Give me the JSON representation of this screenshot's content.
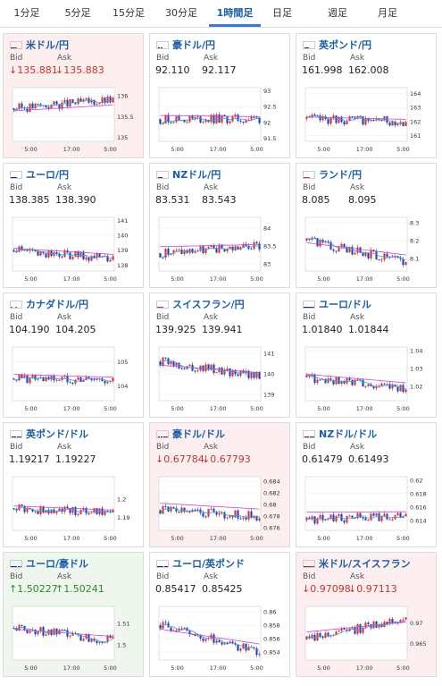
{
  "tabs": [
    "1分足",
    "5分足",
    "15分足",
    "30分足",
    "1時間足",
    "日足",
    "週足",
    "月足"
  ],
  "active_tab": 4,
  "bid_label": "Bid",
  "ask_label": "Ask",
  "colors": {
    "up_candle": "#e03030",
    "down_candle": "#2040b0",
    "ma_short": "#39a0d8",
    "ma_long": "#d040d0"
  },
  "cards": [
    {
      "pair": "米ドル/円",
      "flag": "us-jp",
      "bid": "↓135.881",
      "ask": "↓135.883",
      "trend": "down",
      "yticks": [
        "136",
        "135.5",
        "135"
      ],
      "xticks": [
        "5:00",
        "17:00",
        "5:00"
      ],
      "ylim": [
        134.9,
        136.2
      ],
      "start": 135.7,
      "end": 135.9,
      "ma": 135.6
    },
    {
      "pair": "豪ドル/円",
      "flag": "au-jp",
      "bid": "92.110",
      "ask": "92.117",
      "trend": "flat",
      "yticks": [
        "93",
        "92.5",
        "92",
        "91.5"
      ],
      "xticks": [
        "5:00",
        "17:00",
        "5:00"
      ],
      "ylim": [
        91.4,
        93.1
      ],
      "start": 92.1,
      "end": 92.1,
      "ma": 92.3
    },
    {
      "pair": "英ポンド/円",
      "flag": "gb-jp",
      "bid": "161.998",
      "ask": "162.008",
      "trend": "flat",
      "yticks": [
        "164",
        "163",
        "162",
        "161"
      ],
      "xticks": [
        "5:00",
        "17:00",
        "5:00"
      ],
      "ylim": [
        160.6,
        164.4
      ],
      "start": 162.2,
      "end": 162.0,
      "ma": 162.4
    },
    {
      "pair": "ユーロ/円",
      "flag": "eu-jp",
      "bid": "138.385",
      "ask": "138.390",
      "trend": "flat",
      "yticks": [
        "141",
        "140",
        "139",
        "138"
      ],
      "xticks": [
        "5:00",
        "17:00",
        "5:00"
      ],
      "ylim": [
        137.6,
        141.2
      ],
      "start": 139.0,
      "end": 138.4,
      "ma": 139.2
    },
    {
      "pair": "NZドル/円",
      "flag": "nz-jp",
      "bid": "83.531",
      "ask": "83.543",
      "trend": "flat",
      "yticks": [
        "84",
        "83.5",
        "83"
      ],
      "xticks": [
        "5:00",
        "17:00",
        "5:00"
      ],
      "ylim": [
        82.8,
        84.3
      ],
      "start": 83.3,
      "end": 83.5,
      "ma": 83.6
    },
    {
      "pair": "ランド/円",
      "flag": "za-jp",
      "bid": "8.085",
      "ask": "8.095",
      "trend": "flat",
      "yticks": [
        "8.3",
        "8.2",
        "8.1"
      ],
      "xticks": [
        "5:00",
        "17:00",
        "5:00"
      ],
      "ylim": [
        8.03,
        8.33
      ],
      "start": 8.2,
      "end": 8.08,
      "ma": 8.18
    },
    {
      "pair": "カナダドル/円",
      "flag": "ca-jp",
      "bid": "104.190",
      "ask": "104.205",
      "trend": "flat",
      "yticks": [
        "105",
        "104"
      ],
      "xticks": [
        "5:00",
        "17:00",
        "5:00"
      ],
      "ylim": [
        103.4,
        105.6
      ],
      "start": 104.3,
      "end": 104.2,
      "ma": 104.6
    },
    {
      "pair": "スイスフラン/円",
      "flag": "ch-jp",
      "bid": "139.925",
      "ask": "139.941",
      "trend": "flat",
      "yticks": [
        "141",
        "140",
        "139"
      ],
      "xticks": [
        "5:00",
        "17:00",
        "5:00"
      ],
      "ylim": [
        138.7,
        141.3
      ],
      "start": 140.6,
      "end": 139.9,
      "ma": 140.3
    },
    {
      "pair": "ユーロ/ドル",
      "flag": "eu-us",
      "bid": "1.01840",
      "ask": "1.01844",
      "trend": "flat",
      "yticks": [
        "1.04",
        "1.03",
        "1.02"
      ],
      "xticks": [
        "5:00",
        "17:00",
        "5:00"
      ],
      "ylim": [
        1.012,
        1.042
      ],
      "start": 1.025,
      "end": 1.018,
      "ma": 1.028
    },
    {
      "pair": "英ポンド/ドル",
      "flag": "gb-us",
      "bid": "1.19217",
      "ask": "1.19227",
      "trend": "flat",
      "yticks": [
        "1.2",
        "1.19"
      ],
      "xticks": [
        "5:00",
        "17:00",
        "5:00"
      ],
      "ylim": [
        1.183,
        1.212
      ],
      "start": 1.195,
      "end": 1.192,
      "ma": 1.197
    },
    {
      "pair": "豪ドル/ドル",
      "flag": "au-us",
      "bid": "↓0.67784",
      "ask": "↓0.67793",
      "trend": "down",
      "yticks": [
        "0.684",
        "0.682",
        "0.68",
        "0.678",
        "0.676"
      ],
      "xticks": [
        "5:00",
        "17:00",
        "5:00"
      ],
      "ylim": [
        0.6755,
        0.6848
      ],
      "start": 0.679,
      "end": 0.678,
      "ma": 0.681
    },
    {
      "pair": "NZドル/ドル",
      "flag": "nz-us",
      "bid": "0.61479",
      "ask": "0.61493",
      "trend": "flat",
      "yticks": [
        "0.62",
        "0.618",
        "0.616",
        "0.614"
      ],
      "xticks": [
        "5:00",
        "17:00",
        "5:00"
      ],
      "ylim": [
        0.6125,
        0.6205
      ],
      "start": 0.614,
      "end": 0.6148,
      "ma": 0.616
    },
    {
      "pair": "ユーロ/豪ドル",
      "flag": "eu-au",
      "bid": "↑1.50227",
      "ask": "↑1.50241",
      "trend": "up",
      "yticks": [
        "1.51",
        "1.5"
      ],
      "xticks": [
        "5:00",
        "17:00",
        "5:00"
      ],
      "ylim": [
        1.493,
        1.518
      ],
      "start": 1.508,
      "end": 1.502,
      "ma": 1.507
    },
    {
      "pair": "ユーロ/英ポンド",
      "flag": "eu-gb",
      "bid": "0.85417",
      "ask": "0.85425",
      "trend": "flat",
      "yticks": [
        "0.86",
        "0.858",
        "0.856",
        "0.854"
      ],
      "xticks": [
        "5:00",
        "17:00",
        "5:00"
      ],
      "ylim": [
        0.8528,
        0.8608
      ],
      "start": 0.858,
      "end": 0.854,
      "ma": 0.857
    },
    {
      "pair": "米ドル/スイスフラン",
      "flag": "us-ch",
      "bid": "↓0.97098",
      "ask": "↓0.97113",
      "trend": "down",
      "yticks": [
        "0.97",
        "0.965"
      ],
      "xticks": [
        "5:00",
        "17:00",
        "5:00"
      ],
      "ylim": [
        0.961,
        0.974
      ],
      "start": 0.966,
      "end": 0.971,
      "ma": 0.969
    }
  ]
}
